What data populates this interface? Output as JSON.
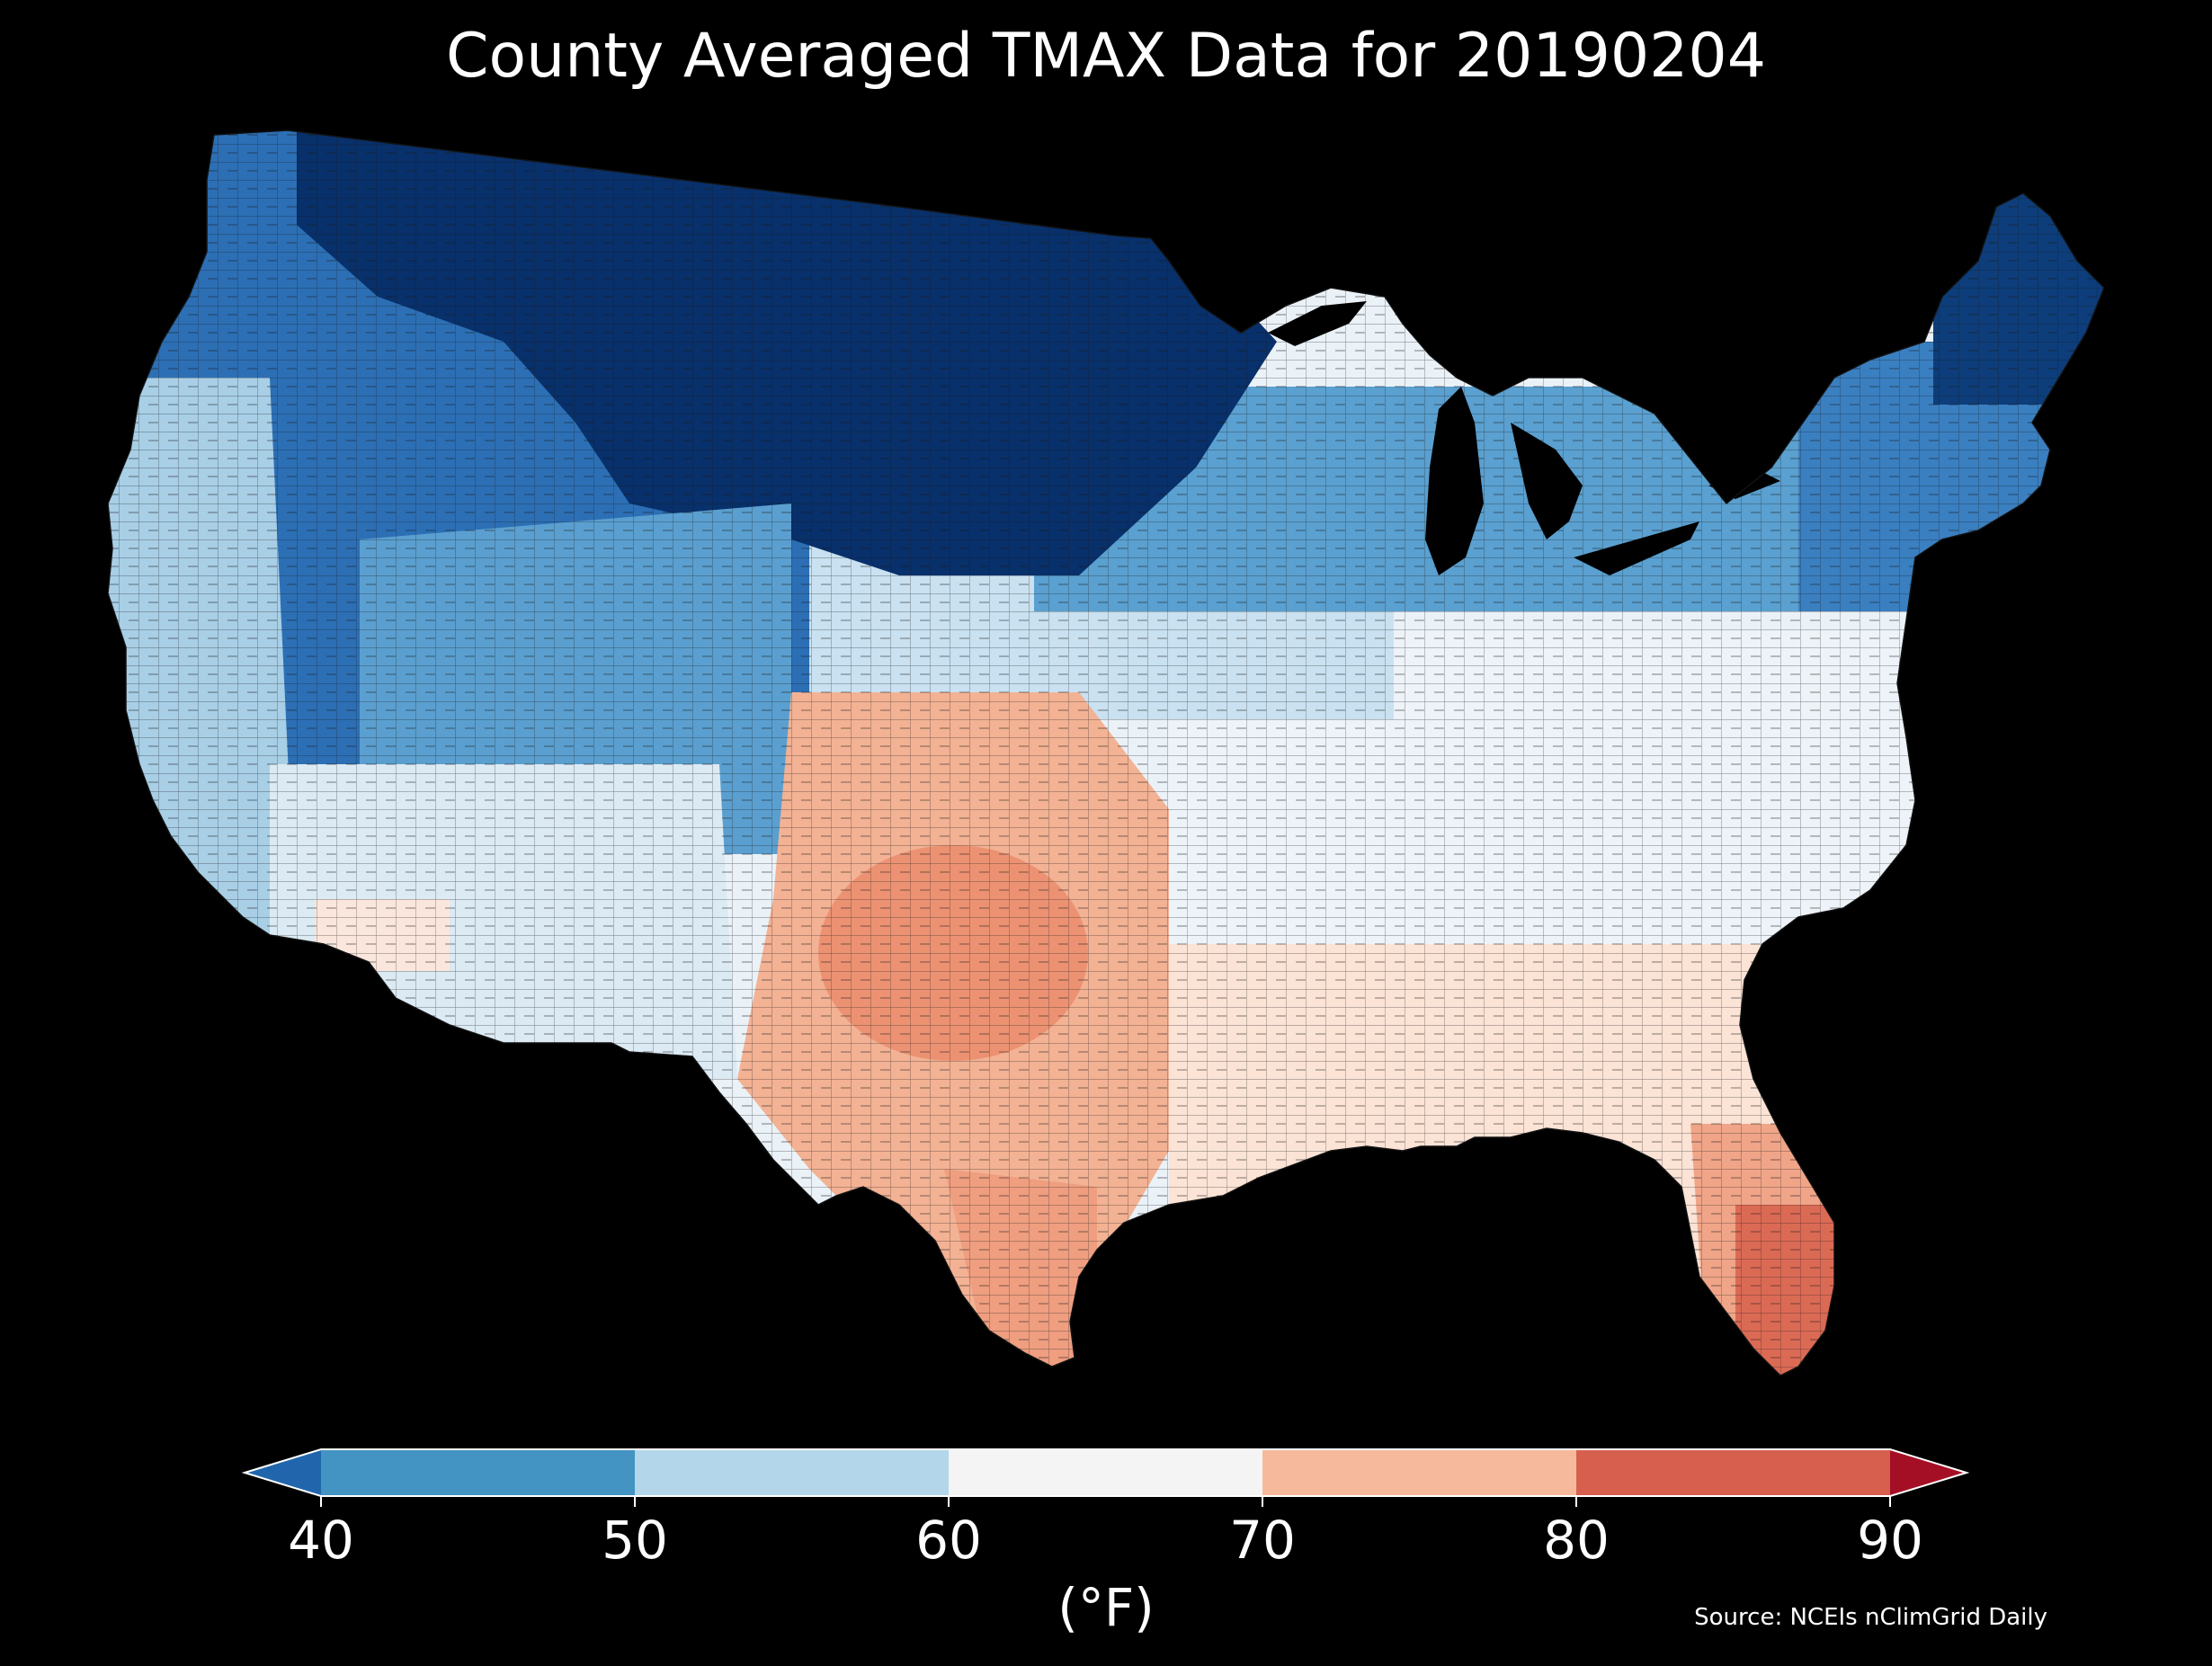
{
  "title": "County Averaged TMAX Data for 20190204",
  "colorbar": {
    "label": "(°F)",
    "ticks": [
      "40",
      "50",
      "60",
      "70",
      "80",
      "90"
    ],
    "extend": "both",
    "bins": [
      {
        "range": "<40",
        "color": "#2166ac"
      },
      {
        "range": "40-50",
        "color": "#4393c3"
      },
      {
        "range": "50-60",
        "color": "#b4d6ea"
      },
      {
        "range": "60-70",
        "color": "#f4f4f4"
      },
      {
        "range": "70-80",
        "color": "#f7b99c"
      },
      {
        "range": "80-90",
        "color": "#d6604d"
      },
      {
        "range": ">90",
        "color": "#a50f25"
      }
    ]
  },
  "source": "Source: NCEIs nClimGrid Daily",
  "map": {
    "region": "Contiguous United States",
    "variable": "TMAX",
    "date": "20190204",
    "background_color": "#000000",
    "regional_colors": {
      "northern_plains_deep_cold": "#08306b",
      "northwest_rockies": "#2c6fb5",
      "great_lakes_midwest": "#5aa0d0",
      "northeast": "#3a7fc0",
      "central_plains_transition": "#c9e1f0",
      "ohio_valley_mid_atlantic": "#eaf2f8",
      "california_coast": "#a8cfe6",
      "southwest_desert": "#dceaf3",
      "texas_oklahoma": "#f3b294",
      "southeast_gulf": "#fbe3d6",
      "south_florida": "#db6a55"
    }
  }
}
